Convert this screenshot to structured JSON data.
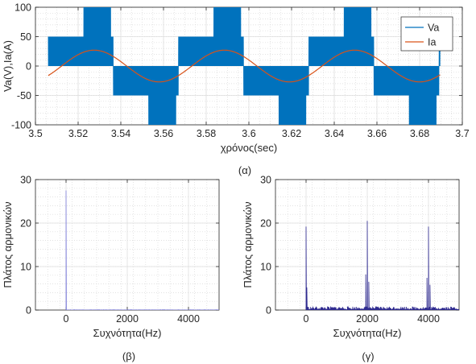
{
  "figure": {
    "caption_a": "(α)",
    "caption_b": "(β)",
    "caption_c": "(γ)"
  },
  "chart_data": [
    {
      "id": "a",
      "type": "line",
      "xlabel": "χρόνος(sec)",
      "ylabel": "Va(V),Ia(A)",
      "xlim": [
        3.5,
        3.7
      ],
      "ylim": [
        -100,
        100
      ],
      "xticks": [
        "3.5",
        "3.52",
        "3.54",
        "3.56",
        "3.58",
        "3.6",
        "3.62",
        "3.64",
        "3.66",
        "3.68",
        "3.7"
      ],
      "yticks": [
        "-100",
        "-50",
        "0",
        "50",
        "100"
      ],
      "grid": true,
      "minor_grid": true,
      "legend_position": "top-right",
      "series": [
        {
          "name": "Va",
          "color": "#0072BD",
          "kind": "pwm",
          "x_start": 3.506,
          "x_end": 3.6896,
          "period": 0.06101,
          "phase_start": 3.506,
          "level_low": 50,
          "level_high": 100,
          "segments": [
            {
              "from": 0.0,
              "to": 0.271,
              "level": "low"
            },
            {
              "from": 0.271,
              "to": 0.48,
              "level": "high"
            },
            {
              "from": 0.48,
              "to": 0.5,
              "level": "low"
            },
            {
              "from": 0.5,
              "to": 0.771,
              "level": "-low"
            },
            {
              "from": 0.771,
              "to": 0.98,
              "level": "-high"
            },
            {
              "from": 0.98,
              "to": 1.0,
              "level": "-low"
            }
          ]
        },
        {
          "name": "Ia",
          "color": "#D95319",
          "kind": "sine",
          "x_start": 3.506,
          "x_end": 3.6896,
          "amplitude": 27,
          "frequency": 16.39,
          "peak_at": 3.5275
        }
      ]
    },
    {
      "id": "b",
      "type": "line",
      "xlabel": "Συχνότητα(Hz)",
      "ylabel": "Πλάτος αρμονικών",
      "xlim": [
        -1000,
        5000
      ],
      "ylim": [
        0,
        30
      ],
      "xticks": [
        "0",
        "2000",
        "4000"
      ],
      "yticks": [
        "0",
        "10",
        "20",
        "30"
      ],
      "grid": true,
      "minor_grid": true,
      "series": [
        {
          "color": "#7E7ED9",
          "peaks": [
            [
              0,
              27.5
            ]
          ],
          "floor": 0.05
        }
      ]
    },
    {
      "id": "c",
      "type": "line",
      "xlabel": "Συχνότητα(Hz)",
      "ylabel": "Πλάτος αρμονικών",
      "xlim": [
        -1000,
        5000
      ],
      "ylim": [
        0,
        30
      ],
      "xticks": [
        "0",
        "2000",
        "4000"
      ],
      "yticks": [
        "0",
        "10",
        "20",
        "30"
      ],
      "grid": true,
      "minor_grid": true,
      "series": [
        {
          "color": "#2E2A8F",
          "peaks": [
            [
              0,
              19.2
            ],
            [
              16,
              5.2
            ],
            [
              2000,
              20.5
            ],
            [
              1950,
              8.2
            ],
            [
              2050,
              6.5
            ],
            [
              4000,
              19.2
            ],
            [
              3950,
              7.4
            ],
            [
              4050,
              5.8
            ]
          ],
          "floor": 0.7
        }
      ]
    }
  ]
}
